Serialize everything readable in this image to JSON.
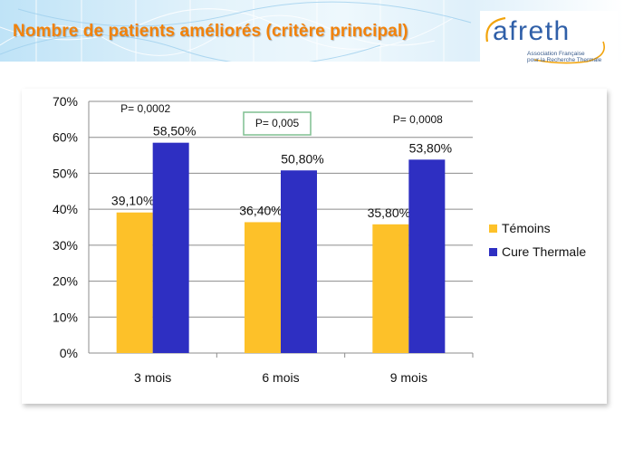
{
  "slide": {
    "title": "Nombre de patients améliorés (critère principal)",
    "title_color": "#f2820a"
  },
  "logo": {
    "name": "afreth",
    "subtitle_line1": "Association Française",
    "subtitle_line2": "pour la Recherche Thermale",
    "color": "#2f5fa8"
  },
  "chart_data": {
    "type": "bar",
    "categories": [
      "3 mois",
      "6 mois",
      "9 mois"
    ],
    "series": [
      {
        "name": "Témoins",
        "color": "#fdc129",
        "values": [
          39.1,
          36.4,
          35.8
        ],
        "labels": [
          "39,10%",
          "36,40%",
          "35,80%"
        ]
      },
      {
        "name": "Cure Thermale",
        "color": "#2e2fc2",
        "values": [
          58.5,
          50.8,
          53.8
        ],
        "labels": [
          "58,50%",
          "50,80%",
          "53,80%"
        ]
      }
    ],
    "ylim": [
      0,
      70
    ],
    "yticks": [
      0,
      10,
      20,
      30,
      40,
      50,
      60,
      70
    ],
    "ytick_labels": [
      "0%",
      "10%",
      "20%",
      "30%",
      "40%",
      "50%",
      "60%",
      "70%"
    ],
    "grid": true,
    "legend_position": "right",
    "annotations": [
      {
        "category": "3 mois",
        "text": "P= 0,0002",
        "boxed": false
      },
      {
        "category": "6 mois",
        "text": "P= 0,005",
        "boxed": true
      },
      {
        "category": "9 mois",
        "text": "P= 0,0008",
        "boxed": false
      }
    ],
    "annotation_box_color": "#7fbf90"
  }
}
